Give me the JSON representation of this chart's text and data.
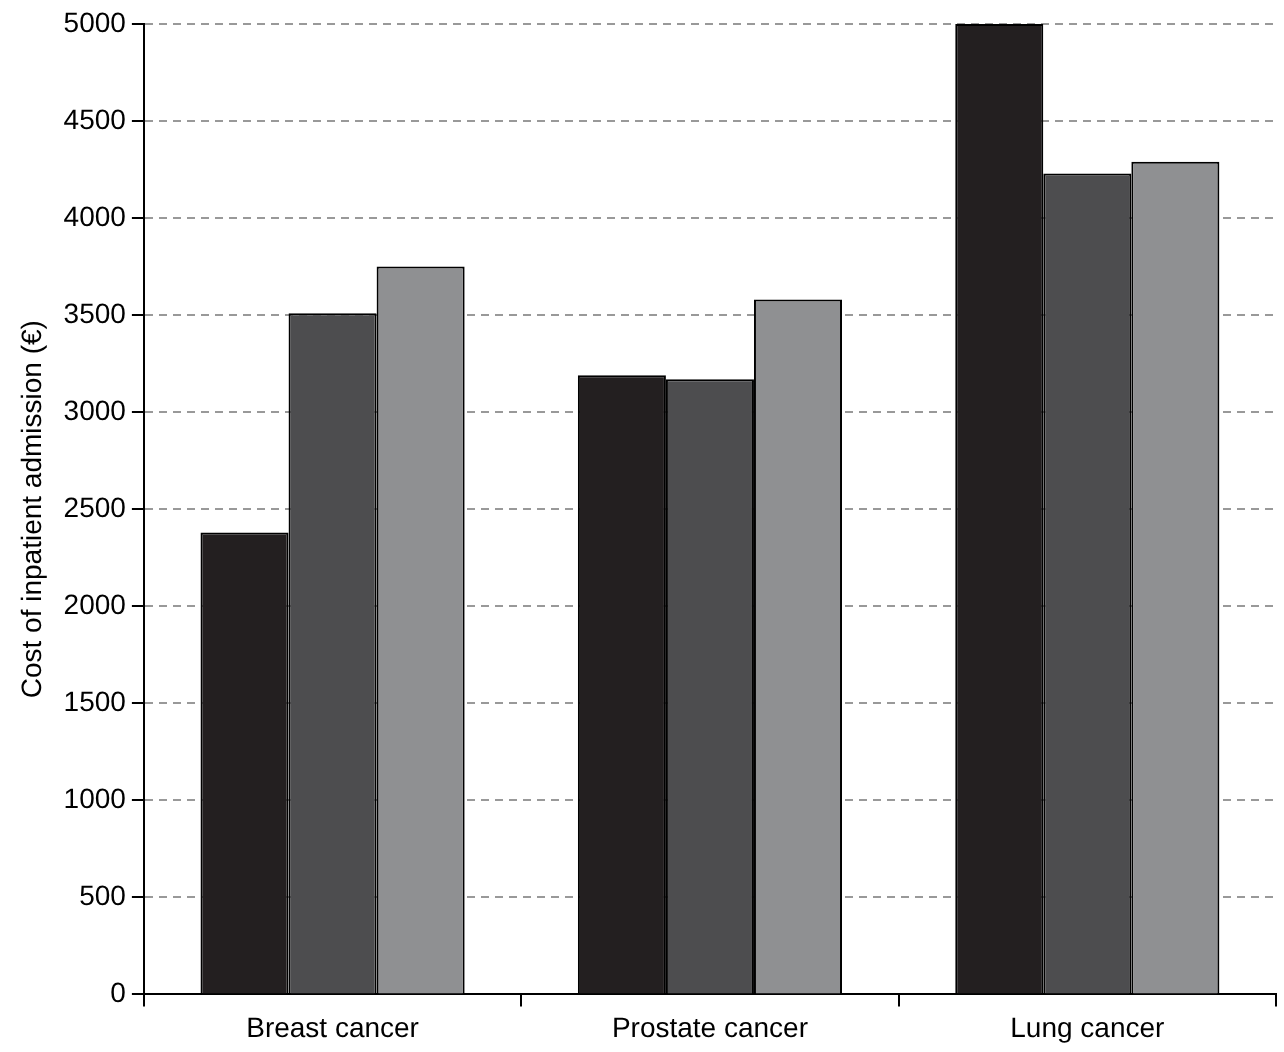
{
  "chart_data": {
    "type": "bar",
    "ylabel": "Cost of inpatient admission (€)",
    "categories": [
      "Breast cancer",
      "Prostate cancer",
      "Lung cancer"
    ],
    "series": [
      {
        "color": "#231f20",
        "values": [
          2380,
          3190,
          5000
        ]
      },
      {
        "color": "#4d4d4f",
        "values": [
          3510,
          3170,
          4230
        ]
      },
      {
        "color": "#8f9092",
        "values": [
          3750,
          3580,
          4290
        ]
      }
    ],
    "ylim": [
      0,
      5000
    ],
    "yticks": [
      0,
      500,
      1000,
      1500,
      2000,
      2500,
      3000,
      3500,
      4000,
      4500,
      5000
    ],
    "grid": "y",
    "legend": false
  }
}
